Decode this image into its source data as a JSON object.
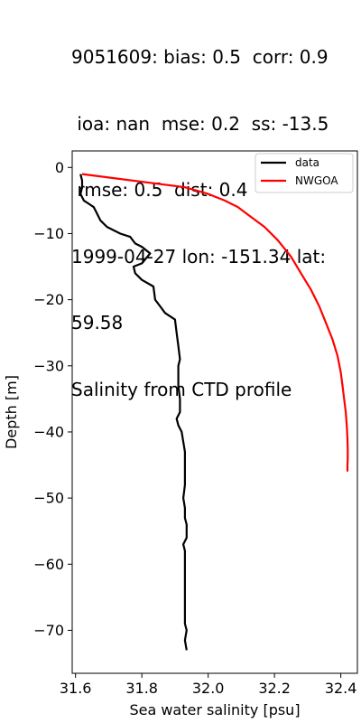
{
  "title_lines": [
    "9051609: bias: 0.5  corr: 0.9",
    " ioa: nan  mse: 0.2  ss: -13.5",
    " rmse: 0.5  dist: 0.4",
    "1999-04-27 lon: -151.34 lat:",
    "59.58",
    "Salinity from CTD profile"
  ],
  "chart_data": {
    "type": "line",
    "xlabel": "Sea water salinity [psu]",
    "ylabel": "Depth [m]",
    "xlim": [
      31.59,
      32.45
    ],
    "ylim": [
      -76.5,
      2.5
    ],
    "xticks": [
      31.6,
      31.8,
      32.0,
      32.2,
      32.4
    ],
    "xtick_labels": [
      "31.6",
      "31.8",
      "32.0",
      "32.2",
      "32.4"
    ],
    "yticks": [
      0,
      -10,
      -20,
      -30,
      -40,
      -50,
      -60,
      -70
    ],
    "ytick_labels": [
      "0",
      "−10",
      "−20",
      "−30",
      "−40",
      "−50",
      "−60",
      "−70"
    ],
    "grid": false,
    "legend_position": "top-right",
    "series": [
      {
        "name": "data",
        "color": "#000000",
        "x": [
          31.615,
          31.62,
          31.62,
          31.615,
          31.625,
          31.64,
          31.655,
          31.665,
          31.675,
          31.695,
          31.735,
          31.765,
          31.78,
          31.8,
          31.825,
          31.8,
          31.775,
          31.78,
          31.8,
          31.835,
          31.84,
          31.855,
          31.87,
          31.9,
          31.905,
          31.91,
          31.915,
          31.91,
          31.91,
          31.915,
          31.915,
          31.905,
          31.91,
          31.92,
          31.925,
          31.93,
          31.93,
          31.93,
          31.925,
          31.93,
          31.93,
          31.935,
          31.935,
          31.935,
          31.925,
          31.93,
          31.93,
          31.93,
          31.93,
          31.93,
          31.93,
          31.935,
          31.93,
          31.935
        ],
        "y": [
          -1,
          -2,
          -3,
          -4,
          -5,
          -5.5,
          -6,
          -7,
          -8,
          -9,
          -10,
          -10.5,
          -11.5,
          -12,
          -13,
          -14.5,
          -15,
          -16,
          -17,
          -18,
          -20,
          -21,
          -22,
          -23,
          -25,
          -27,
          -29,
          -30,
          -33,
          -35,
          -37,
          -38,
          -39,
          -40,
          -41.5,
          -43,
          -45,
          -48,
          -50,
          -51.5,
          -53,
          -54,
          -55,
          -56,
          -57,
          -58,
          -60,
          -62,
          -65,
          -67,
          -69,
          -70,
          -71.5,
          -73
        ]
      },
      {
        "name": "NWGOA",
        "color": "#ff0000",
        "x": [
          31.62,
          31.93,
          32.0,
          32.05,
          32.09,
          32.13,
          32.17,
          32.21,
          32.25,
          32.28,
          32.31,
          32.335,
          32.355,
          32.375,
          32.39,
          32.4,
          32.405,
          32.41,
          32.415,
          32.418,
          32.42,
          32.421,
          32.421,
          32.42,
          32.42
        ],
        "y": [
          -1,
          -3,
          -4,
          -5,
          -6,
          -7.5,
          -9,
          -11,
          -13.5,
          -16,
          -18.5,
          -21,
          -23.5,
          -26,
          -28.5,
          -31,
          -33,
          -35,
          -37,
          -39,
          -41,
          -42.5,
          -44,
          -45,
          -46
        ]
      }
    ]
  }
}
